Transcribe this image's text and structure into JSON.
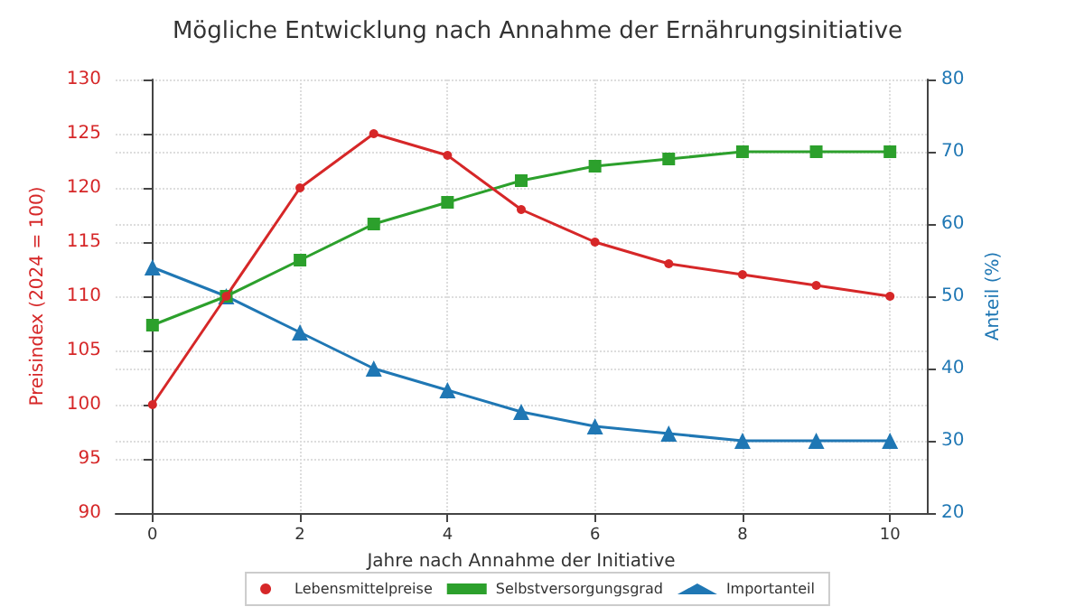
{
  "chart_data": {
    "type": "line",
    "title": "Mögliche Entwicklung nach Annahme der Ernährungsinitiative",
    "xlabel": "Jahre nach Annahme der Initiative",
    "ylabel": "Preisindex (2024 = 100)",
    "y2label": "Anteil (%)",
    "x": [
      0,
      1,
      2,
      3,
      4,
      5,
      6,
      7,
      8,
      9,
      10
    ],
    "series": [
      {
        "name": "Lebensmittelpreise",
        "color": "#d62728",
        "marker": "circle",
        "values": [
          100,
          110,
          120,
          125,
          123,
          118,
          115,
          113,
          112,
          111,
          110
        ]
      },
      {
        "name": "Selbstversorgungsgrad",
        "color": "#2ca02c",
        "marker": "square",
        "axis": "y2",
        "values": [
          46,
          50,
          55,
          60,
          63,
          66,
          68,
          69,
          70,
          70,
          70
        ]
      },
      {
        "name": "Importanteil",
        "color": "#1f77b4",
        "marker": "triangle",
        "axis": "y2",
        "values": [
          54,
          50,
          45,
          40,
          37,
          34,
          32,
          31,
          30,
          30,
          30
        ]
      }
    ],
    "xlim": [
      -0.5,
      10.5
    ],
    "xticks": [
      0,
      2,
      4,
      6,
      8,
      10
    ],
    "ylim": [
      90,
      130
    ],
    "yticks": [
      90,
      95,
      100,
      105,
      110,
      115,
      120,
      125,
      130
    ],
    "y2lim": [
      20,
      80
    ],
    "y2ticks": [
      20,
      30,
      40,
      50,
      60,
      70,
      80
    ],
    "grid": true,
    "legend": "bottom",
    "line_style": "solid"
  }
}
